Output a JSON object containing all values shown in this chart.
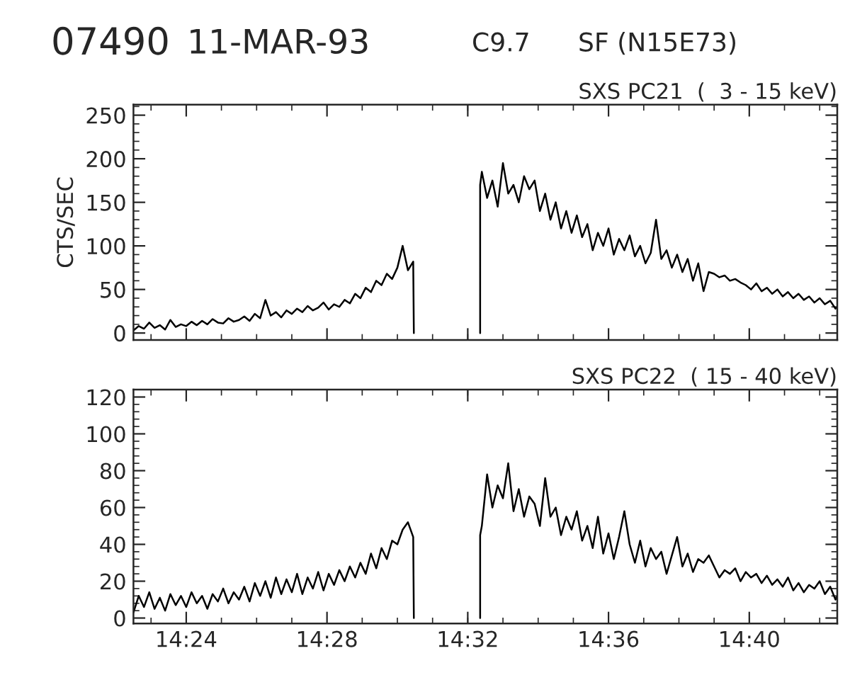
{
  "chart_data": [
    {
      "type": "line",
      "title": "SXS PC21  (  3 - 15 keV)",
      "ylabel": "CTS/SEC",
      "annotations": [
        "07490",
        "11-MAR-93",
        "C9.7",
        "SF (N15E73)"
      ],
      "xlim": [
        14.375,
        14.70833
      ],
      "xticks": [
        {
          "value": 14.4,
          "label": null
        },
        {
          "value": 14.46667,
          "label": null
        },
        {
          "value": 14.53333,
          "label": null
        },
        {
          "value": 14.6,
          "label": null
        },
        {
          "value": 14.66667,
          "label": null
        }
      ],
      "ylim": [
        -8,
        262
      ],
      "yticks": [
        0,
        50,
        100,
        150,
        200,
        250
      ],
      "tick_labels": "y",
      "grid": false,
      "legend": false,
      "series": [
        {
          "color": "#000000",
          "x": [
            14.375,
            14.3775,
            14.38,
            14.3825,
            14.385,
            14.3875,
            14.39,
            14.3925,
            14.395,
            14.3975,
            14.4,
            14.4025,
            14.405,
            14.4075,
            14.41,
            14.4125,
            14.415,
            14.4175,
            14.42,
            14.4225,
            14.425,
            14.4275,
            14.43,
            14.4325,
            14.435,
            14.4375,
            14.44,
            14.4425,
            14.445,
            14.4475,
            14.45,
            14.4525,
            14.455,
            14.4575,
            14.46,
            14.4625,
            14.465,
            14.4675,
            14.47,
            14.4725,
            14.475,
            14.4775,
            14.48,
            14.4825,
            14.485,
            14.4875,
            14.49,
            14.4925,
            14.495,
            14.4975,
            14.5,
            14.5025,
            14.505,
            14.5075,
            14.5078,
            14.52,
            14.5392,
            14.5392,
            14.54,
            14.5425,
            14.545,
            14.5475,
            14.55,
            14.5525,
            14.555,
            14.5575,
            14.56,
            14.5625,
            14.565,
            14.5675,
            14.57,
            14.5725,
            14.575,
            14.5775,
            14.58,
            14.5825,
            14.585,
            14.5875,
            14.59,
            14.5925,
            14.595,
            14.5975,
            14.6,
            14.6025,
            14.605,
            14.6075,
            14.61,
            14.6125,
            14.615,
            14.6175,
            14.62,
            14.6225,
            14.625,
            14.6275,
            14.63,
            14.6325,
            14.635,
            14.6375,
            14.64,
            14.6425,
            14.645,
            14.6475,
            14.65,
            14.6525,
            14.655,
            14.6575,
            14.66,
            14.6625,
            14.665,
            14.6675,
            14.67,
            14.6725,
            14.675,
            14.6775,
            14.68,
            14.6825,
            14.685,
            14.6875,
            14.69,
            14.6925,
            14.695,
            14.6975,
            14.7,
            14.7025,
            14.705,
            14.7075,
            14.70833
          ],
          "values": [
            3,
            8,
            5,
            12,
            6,
            9,
            4,
            15,
            7,
            10,
            8,
            13,
            9,
            14,
            10,
            16,
            12,
            11,
            17,
            13,
            15,
            19,
            14,
            22,
            17,
            38,
            20,
            24,
            18,
            26,
            22,
            28,
            24,
            31,
            26,
            29,
            35,
            27,
            33,
            30,
            38,
            34,
            45,
            40,
            52,
            47,
            60,
            55,
            68,
            62,
            75,
            100,
            72,
            82,
            0,
            null,
            0,
            170,
            185,
            155,
            175,
            145,
            195,
            160,
            170,
            150,
            180,
            165,
            175,
            140,
            160,
            130,
            150,
            120,
            140,
            115,
            135,
            110,
            125,
            95,
            115,
            100,
            120,
            90,
            108,
            95,
            112,
            88,
            100,
            80,
            92,
            130,
            85,
            95,
            75,
            90,
            70,
            85,
            60,
            80,
            48,
            70,
            68,
            64,
            66,
            60,
            62,
            58,
            55,
            50,
            57,
            48,
            52,
            45,
            50,
            42,
            47,
            40,
            45,
            38,
            42,
            35,
            40,
            33,
            37,
            28,
            30
          ]
        }
      ]
    },
    {
      "type": "line",
      "title": "SXS PC22  ( 15 - 40 keV)",
      "xlim": [
        14.375,
        14.70833
      ],
      "xticks": [
        {
          "value": 14.4,
          "label": "14:24"
        },
        {
          "value": 14.46667,
          "label": "14:28"
        },
        {
          "value": 14.53333,
          "label": "14:32"
        },
        {
          "value": 14.6,
          "label": "14:36"
        },
        {
          "value": 14.66667,
          "label": "14:40"
        }
      ],
      "ylim": [
        -3,
        124
      ],
      "yticks": [
        0,
        20,
        40,
        60,
        80,
        100,
        120
      ],
      "grid": false,
      "legend": false,
      "series": [
        {
          "color": "#000000",
          "x": [
            14.375,
            14.3775,
            14.38,
            14.3825,
            14.385,
            14.3875,
            14.39,
            14.3925,
            14.395,
            14.3975,
            14.4,
            14.4025,
            14.405,
            14.4075,
            14.41,
            14.4125,
            14.415,
            14.4175,
            14.42,
            14.4225,
            14.425,
            14.4275,
            14.43,
            14.4325,
            14.435,
            14.4375,
            14.44,
            14.4425,
            14.445,
            14.4475,
            14.45,
            14.4525,
            14.455,
            14.4575,
            14.46,
            14.4625,
            14.465,
            14.4675,
            14.47,
            14.4725,
            14.475,
            14.4775,
            14.48,
            14.4825,
            14.485,
            14.4875,
            14.49,
            14.4925,
            14.495,
            14.4975,
            14.5,
            14.5025,
            14.505,
            14.5075,
            14.5078,
            14.52,
            14.5392,
            14.5392,
            14.54,
            14.5425,
            14.545,
            14.5475,
            14.55,
            14.5525,
            14.555,
            14.5575,
            14.56,
            14.5625,
            14.565,
            14.5675,
            14.57,
            14.5725,
            14.575,
            14.5775,
            14.58,
            14.5825,
            14.585,
            14.5875,
            14.59,
            14.5925,
            14.595,
            14.5975,
            14.6,
            14.6025,
            14.605,
            14.6075,
            14.61,
            14.6125,
            14.615,
            14.6175,
            14.62,
            14.6225,
            14.625,
            14.6275,
            14.63,
            14.6325,
            14.635,
            14.6375,
            14.64,
            14.6425,
            14.645,
            14.6475,
            14.65,
            14.6525,
            14.655,
            14.6575,
            14.66,
            14.6625,
            14.665,
            14.6675,
            14.67,
            14.6725,
            14.675,
            14.6775,
            14.68,
            14.6825,
            14.685,
            14.6875,
            14.69,
            14.6925,
            14.695,
            14.6975,
            14.7,
            14.7025,
            14.705,
            14.7075,
            14.70833
          ],
          "values": [
            3,
            12,
            6,
            14,
            5,
            11,
            4,
            13,
            7,
            12,
            6,
            14,
            8,
            12,
            5,
            13,
            9,
            16,
            8,
            14,
            10,
            17,
            9,
            19,
            12,
            20,
            11,
            22,
            13,
            21,
            14,
            24,
            13,
            22,
            16,
            25,
            15,
            24,
            18,
            26,
            20,
            28,
            22,
            30,
            24,
            35,
            27,
            38,
            32,
            42,
            40,
            48,
            52,
            44,
            0,
            null,
            0,
            45,
            50,
            78,
            60,
            72,
            65,
            84,
            58,
            70,
            55,
            66,
            62,
            50,
            76,
            55,
            60,
            45,
            55,
            48,
            58,
            42,
            50,
            38,
            55,
            35,
            46,
            32,
            44,
            58,
            40,
            30,
            42,
            28,
            38,
            32,
            36,
            24,
            34,
            44,
            28,
            35,
            25,
            32,
            30,
            34,
            28,
            22,
            26,
            24,
            27,
            20,
            25,
            22,
            24,
            19,
            23,
            18,
            21,
            17,
            22,
            15,
            19,
            14,
            18,
            16,
            20,
            13,
            17,
            10,
            12
          ]
        }
      ]
    }
  ]
}
